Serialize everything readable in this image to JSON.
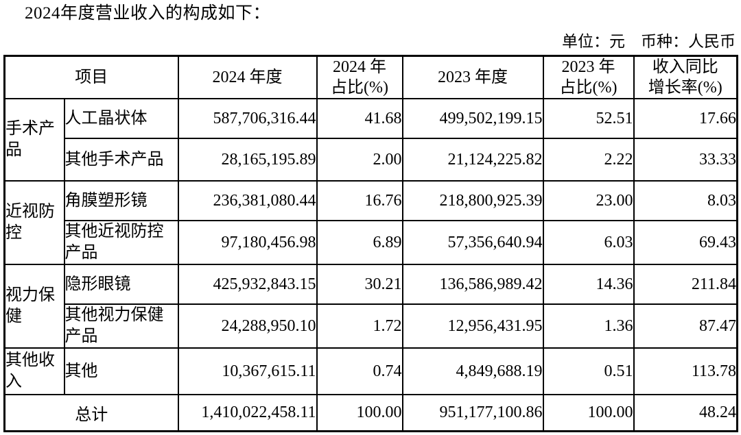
{
  "page": {
    "title": "2024年度营业收入的构成如下：",
    "unit_note": "单位：元　币种：人民币"
  },
  "table": {
    "headers": {
      "item": "项目",
      "y2024": "2024 年度",
      "y2024_pct": "2024 年\n占比(%)",
      "y2023": "2023 年度",
      "y2023_pct": "2023 年\n占比(%)",
      "yoy": "收入同比\n增长率(%)"
    },
    "rows": [
      {
        "group": "手术产品",
        "item": "人工晶状体",
        "v2024": "587,706,316.44",
        "p2024": "41.68",
        "v2023": "499,502,199.15",
        "p2023": "52.51",
        "yoy": "17.66"
      },
      {
        "item": "其他手术产品",
        "v2024": "28,165,195.89",
        "p2024": "2.00",
        "v2023": "21,124,225.82",
        "p2023": "2.22",
        "yoy": "33.33"
      },
      {
        "group": "近视防控",
        "item": "角膜塑形镜",
        "v2024": "236,381,080.44",
        "p2024": "16.76",
        "v2023": "218,800,925.39",
        "p2023": "23.00",
        "yoy": "8.03"
      },
      {
        "item": "其他近视防控产品",
        "v2024": "97,180,456.98",
        "p2024": "6.89",
        "v2023": "57,356,640.94",
        "p2023": "6.03",
        "yoy": "69.43"
      },
      {
        "group": "视力保健",
        "item": "隐形眼镜",
        "v2024": "425,932,843.15",
        "p2024": "30.21",
        "v2023": "136,586,989.42",
        "p2023": "14.36",
        "yoy": "211.84"
      },
      {
        "item": "其他视力保健产品",
        "v2024": "24,288,950.10",
        "p2024": "1.72",
        "v2023": "12,956,431.95",
        "p2023": "1.36",
        "yoy": "87.47"
      },
      {
        "group": "其他收入",
        "item": "其他",
        "v2024": "10,367,615.11",
        "p2024": "0.74",
        "v2023": "4,849,688.19",
        "p2023": "0.51",
        "yoy": "113.78"
      }
    ],
    "total": {
      "label": "总计",
      "v2024": "1,410,022,458.11",
      "p2024": "100.00",
      "v2023": "951,177,100.86",
      "p2023": "100.00",
      "yoy": "48.24"
    }
  }
}
